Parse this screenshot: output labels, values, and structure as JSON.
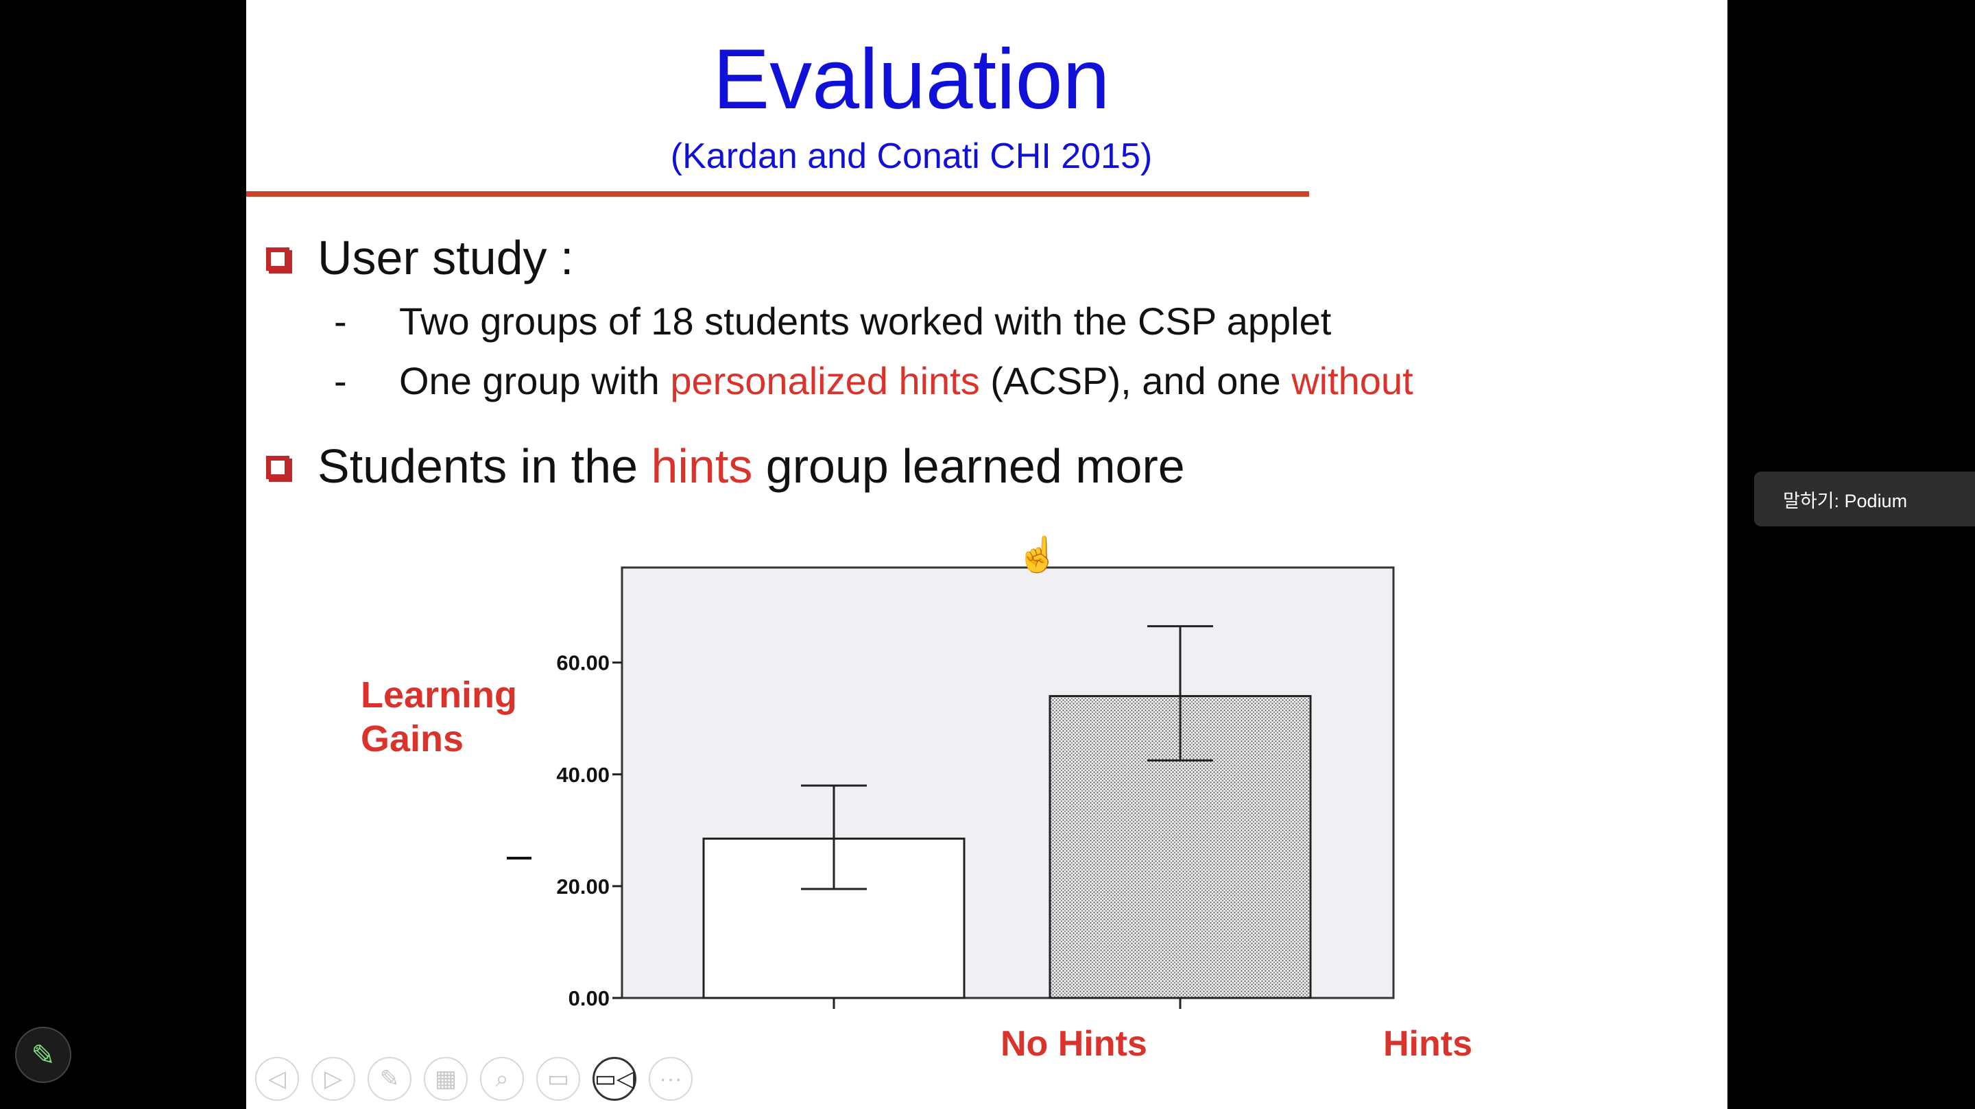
{
  "slide": {
    "title": "Evaluation",
    "subtitle": "(Kardan and Conati CHI 2015)",
    "bullets": [
      {
        "text": "User study :"
      },
      {
        "text_pre": "Students in the ",
        "highlight": "hints",
        "text_post": " group learned more"
      }
    ],
    "sub_bullets": [
      {
        "dash": "-",
        "text": "Two groups of 18 students worked with the CSP applet"
      },
      {
        "dash": "-",
        "part1": "One group with ",
        "hl1": "personalized hints",
        "part2": " (ACSP), and one ",
        "hl2": "without"
      }
    ]
  },
  "chart_data": {
    "type": "bar",
    "ylabel": "Learning Gains",
    "categories": [
      "No Hints",
      "Hints"
    ],
    "values": [
      28.5,
      54.0
    ],
    "error_low": [
      19.5,
      42.5
    ],
    "error_high": [
      38.0,
      66.5
    ],
    "yticks": [
      "0.00",
      "20.00",
      "40.00",
      "60.00"
    ],
    "ylim": [
      0,
      77
    ],
    "grid": false,
    "colors": {
      "plot_bg": "#f0eff4",
      "bar1": "#ffffff",
      "bar2_pattern": "dotted gray"
    }
  },
  "toolbar": {
    "icons": [
      "prev-icon",
      "next-icon",
      "pen-icon",
      "slides-icon",
      "zoom-icon",
      "subtitles-icon",
      "camera-icon",
      "more-icon"
    ]
  },
  "podium": {
    "label": "말하기: Podium"
  }
}
